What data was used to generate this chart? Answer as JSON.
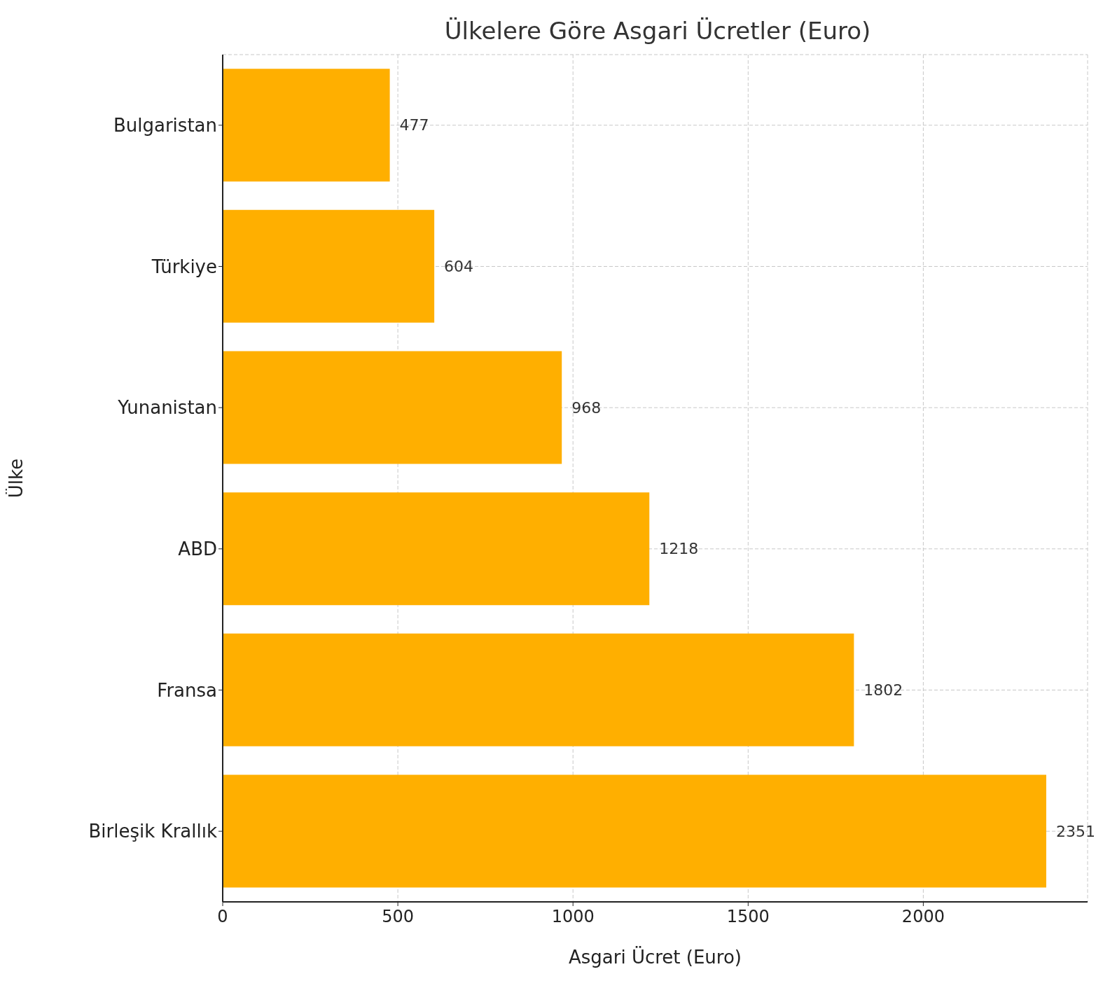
{
  "chart_data": {
    "type": "bar",
    "orientation": "horizontal",
    "title": "Ülkelere Göre Asgari Ücretler (Euro)",
    "xlabel": "Asgari Ücret (Euro)",
    "ylabel": "Ülke",
    "categories": [
      "Bulgaristan",
      "Türkiye",
      "Yunanistan",
      "ABD",
      "Fransa",
      "Birleşik Krallık"
    ],
    "values": [
      477,
      604,
      968,
      1218,
      1802,
      2351
    ],
    "color": "#ffaf00",
    "xlim": [
      0,
      2469
    ],
    "xticks": [
      0,
      500,
      1000,
      1500,
      2000
    ],
    "grid": true,
    "data_labels": true
  }
}
